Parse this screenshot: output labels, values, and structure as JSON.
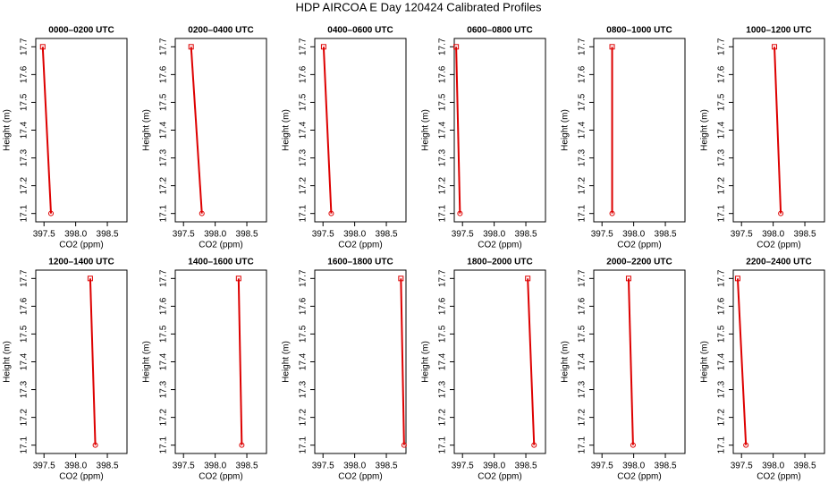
{
  "title": "HDP AIRCOA E  Day 120424  Calibrated Profiles",
  "chart_data": [
    {
      "type": "line",
      "title": "0000–0200 UTC",
      "xlabel": "CO2 (ppm)",
      "ylabel": "Height (m)",
      "color": "#dd0000",
      "x": [
        397.48,
        397.61
      ],
      "values": [
        17.7,
        17.1
      ],
      "xlim": [
        397.37,
        398.81
      ],
      "ylim": [
        17.07,
        17.73
      ],
      "xticks": [
        397.5,
        {
          "value": 398,
          "label": "398.0"
        },
        398.5
      ],
      "yticks": [
        17.1,
        17.2,
        17.3,
        17.4,
        17.5,
        17.6,
        17.7
      ]
    },
    {
      "type": "line",
      "title": "0200–0400 UTC",
      "xlabel": "CO2 (ppm)",
      "ylabel": "Height (m)",
      "color": "#dd0000",
      "x": [
        397.62,
        397.79
      ],
      "values": [
        17.7,
        17.1
      ],
      "xlim": [
        397.37,
        398.81
      ],
      "ylim": [
        17.07,
        17.73
      ],
      "xticks": [
        397.5,
        {
          "value": 398,
          "label": "398.0"
        },
        398.5
      ],
      "yticks": [
        17.1,
        17.2,
        17.3,
        17.4,
        17.5,
        17.6,
        17.7
      ]
    },
    {
      "type": "line",
      "title": "0400–0600 UTC",
      "xlabel": "CO2 (ppm)",
      "ylabel": "Height (m)",
      "color": "#dd0000",
      "x": [
        397.51,
        397.63
      ],
      "values": [
        17.7,
        17.1
      ],
      "xlim": [
        397.37,
        398.81
      ],
      "ylim": [
        17.07,
        17.73
      ],
      "xticks": [
        397.5,
        {
          "value": 398,
          "label": "398.0"
        },
        398.5
      ],
      "yticks": [
        17.1,
        17.2,
        17.3,
        17.4,
        17.5,
        17.6,
        17.7
      ]
    },
    {
      "type": "line",
      "title": "0600–0800 UTC",
      "xlabel": "CO2 (ppm)",
      "ylabel": "Height (m)",
      "color": "#dd0000",
      "x": [
        397.4,
        397.46
      ],
      "values": [
        17.7,
        17.1
      ],
      "xlim": [
        397.37,
        398.81
      ],
      "ylim": [
        17.07,
        17.73
      ],
      "xticks": [
        397.5,
        {
          "value": 398,
          "label": "398.0"
        },
        398.5
      ],
      "yticks": [
        17.1,
        17.2,
        17.3,
        17.4,
        17.5,
        17.6,
        17.7
      ]
    },
    {
      "type": "line",
      "title": "0800–1000 UTC",
      "xlabel": "CO2 (ppm)",
      "ylabel": "Height (m)",
      "color": "#dd0000",
      "x": [
        397.66,
        397.66
      ],
      "values": [
        17.7,
        17.1
      ],
      "xlim": [
        397.37,
        398.81
      ],
      "ylim": [
        17.07,
        17.73
      ],
      "xticks": [
        397.5,
        {
          "value": 398,
          "label": "398.0"
        },
        398.5
      ],
      "yticks": [
        17.1,
        17.2,
        17.3,
        17.4,
        17.5,
        17.6,
        17.7
      ]
    },
    {
      "type": "line",
      "title": "1000–1200 UTC",
      "xlabel": "CO2 (ppm)",
      "ylabel": "Height (m)",
      "color": "#dd0000",
      "x": [
        398.02,
        398.12
      ],
      "values": [
        17.7,
        17.1
      ],
      "xlim": [
        397.37,
        398.81
      ],
      "ylim": [
        17.07,
        17.73
      ],
      "xticks": [
        397.5,
        {
          "value": 398,
          "label": "398.0"
        },
        398.5
      ],
      "yticks": [
        17.1,
        17.2,
        17.3,
        17.4,
        17.5,
        17.6,
        17.7
      ]
    },
    {
      "type": "line",
      "title": "1200–1400 UTC",
      "xlabel": "CO2 (ppm)",
      "ylabel": "Height (m)",
      "color": "#dd0000",
      "x": [
        398.23,
        398.31
      ],
      "values": [
        17.7,
        17.1
      ],
      "xlim": [
        397.37,
        398.81
      ],
      "ylim": [
        17.07,
        17.73
      ],
      "xticks": [
        397.5,
        {
          "value": 398,
          "label": "398.0"
        },
        398.5
      ],
      "yticks": [
        17.1,
        17.2,
        17.3,
        17.4,
        17.5,
        17.6,
        17.7
      ]
    },
    {
      "type": "line",
      "title": "1400–1600 UTC",
      "xlabel": "CO2 (ppm)",
      "ylabel": "Height (m)",
      "color": "#dd0000",
      "x": [
        398.37,
        398.42
      ],
      "values": [
        17.7,
        17.1
      ],
      "xlim": [
        397.37,
        398.81
      ],
      "ylim": [
        17.07,
        17.73
      ],
      "xticks": [
        397.5,
        {
          "value": 398,
          "label": "398.0"
        },
        398.5
      ],
      "yticks": [
        17.1,
        17.2,
        17.3,
        17.4,
        17.5,
        17.6,
        17.7
      ]
    },
    {
      "type": "line",
      "title": "1600–1800 UTC",
      "xlabel": "CO2 (ppm)",
      "ylabel": "Height (m)",
      "color": "#dd0000",
      "x": [
        398.73,
        398.78
      ],
      "values": [
        17.7,
        17.1
      ],
      "xlim": [
        397.37,
        398.81
      ],
      "ylim": [
        17.07,
        17.73
      ],
      "xticks": [
        397.5,
        {
          "value": 398,
          "label": "398.0"
        },
        398.5
      ],
      "yticks": [
        17.1,
        17.2,
        17.3,
        17.4,
        17.5,
        17.6,
        17.7
      ]
    },
    {
      "type": "line",
      "title": "1800–2000 UTC",
      "xlabel": "CO2 (ppm)",
      "ylabel": "Height (m)",
      "color": "#dd0000",
      "x": [
        398.53,
        398.63
      ],
      "values": [
        17.7,
        17.1
      ],
      "xlim": [
        397.37,
        398.81
      ],
      "ylim": [
        17.07,
        17.73
      ],
      "xticks": [
        397.5,
        {
          "value": 398,
          "label": "398.0"
        },
        398.5
      ],
      "yticks": [
        17.1,
        17.2,
        17.3,
        17.4,
        17.5,
        17.6,
        17.7
      ]
    },
    {
      "type": "line",
      "title": "2000–2200 UTC",
      "xlabel": "CO2 (ppm)",
      "ylabel": "Height (m)",
      "color": "#dd0000",
      "x": [
        397.92,
        397.99
      ],
      "values": [
        17.7,
        17.1
      ],
      "xlim": [
        397.37,
        398.81
      ],
      "ylim": [
        17.07,
        17.73
      ],
      "xticks": [
        397.5,
        {
          "value": 398,
          "label": "398.0"
        },
        398.5
      ],
      "yticks": [
        17.1,
        17.2,
        17.3,
        17.4,
        17.5,
        17.6,
        17.7
      ]
    },
    {
      "type": "line",
      "title": "2200–2400 UTC",
      "xlabel": "CO2 (ppm)",
      "ylabel": "Height (m)",
      "color": "#dd0000",
      "x": [
        397.44,
        397.57
      ],
      "values": [
        17.7,
        17.1
      ],
      "xlim": [
        397.37,
        398.81
      ],
      "ylim": [
        17.07,
        17.73
      ],
      "xticks": [
        397.5,
        {
          "value": 398,
          "label": "398.0"
        },
        398.5
      ],
      "yticks": [
        17.1,
        17.2,
        17.3,
        17.4,
        17.5,
        17.6,
        17.7
      ]
    }
  ]
}
